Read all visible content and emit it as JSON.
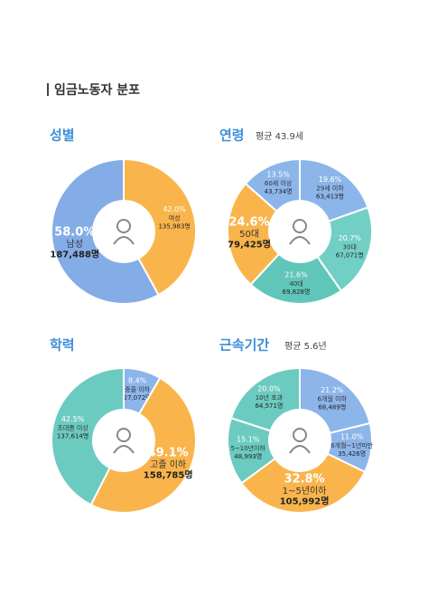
{
  "title": "임금노동자 분포",
  "chart_data": [
    {
      "type": "pie",
      "title": "성별",
      "categories": [
        "여성",
        "남성"
      ],
      "values": [
        42.0,
        58.0
      ],
      "value_labels": [
        "42.0%",
        "58.0%"
      ],
      "counts": [
        "135,983명",
        "187,488명"
      ],
      "colors": [
        "#f9b54c",
        "#84ace6"
      ]
    },
    {
      "type": "pie",
      "title": "연령",
      "subtitle": "평균 43.9세",
      "categories": [
        "29세 이하",
        "30대",
        "40대",
        "50대",
        "60세 이상"
      ],
      "values": [
        19.6,
        20.7,
        21.6,
        24.6,
        13.5
      ],
      "value_labels": [
        "19.6%",
        "20.7%",
        "21.6%",
        "24.6%",
        "13.5%"
      ],
      "counts": [
        "63,413명",
        "67,071명",
        "69,828명",
        "79,425명",
        "43,734명"
      ],
      "colors": [
        "#8cb5ea",
        "#72cfc6",
        "#60c6b9",
        "#f9b54c",
        "#8cb5ea"
      ]
    },
    {
      "type": "pie",
      "title": "학력",
      "categories": [
        "중졸 이하",
        "고졸 이하",
        "초대졸 이상"
      ],
      "values": [
        8.4,
        49.1,
        42.5
      ],
      "value_labels": [
        "8.4%",
        "49.1%",
        "42.5%"
      ],
      "counts": [
        "27,072명",
        "158,785명",
        "137,614명"
      ],
      "colors": [
        "#8cb5ea",
        "#f9b54c",
        "#6ccbc1"
      ]
    },
    {
      "type": "pie",
      "title": "근속기간",
      "subtitle": "평균 5.6년",
      "categories": [
        "6개월 이하",
        "6개월~1년미만",
        "1~5년이하",
        "5~10년이하",
        "10년 초과"
      ],
      "values": [
        21.2,
        11.0,
        32.8,
        15.1,
        20.0
      ],
      "value_labels": [
        "21.2%",
        "11.0%",
        "32.8%",
        "15.1%",
        "20.0%"
      ],
      "counts": [
        "68,489명",
        "35,426명",
        "105,992명",
        "48,993명",
        "64,571명"
      ],
      "colors": [
        "#8cb5ea",
        "#8cb5ea",
        "#f9b54c",
        "#6ccbc1",
        "#6ccbc1"
      ]
    }
  ]
}
